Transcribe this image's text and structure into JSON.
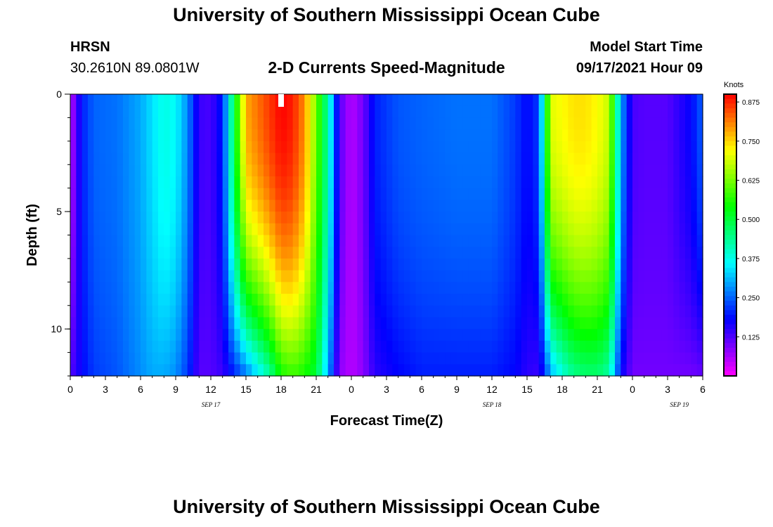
{
  "header": {
    "title": "University of Southern Mississippi Ocean Cube",
    "station": "HRSN",
    "coordinates": "30.2610N  89.0801W",
    "plot_title": "2-D Currents Speed-Magnitude",
    "model_start_label": "Model Start Time",
    "model_start_value": "09/17/2021 Hour 09"
  },
  "footer": {
    "title": "University of Southern Mississippi Ocean Cube"
  },
  "colors": {
    "background": "#ffffff",
    "text": "#000000",
    "marker": "#ffffff"
  },
  "chart_data": {
    "type": "heatmap",
    "title": "2-D Currents Speed-Magnitude",
    "xlabel": "Forecast Time(Z)",
    "ylabel": "Depth (ft)",
    "units": "Knots",
    "x_hours_from_start": [
      0,
      54
    ],
    "x_tick_labels": [
      "0",
      "3",
      "6",
      "9",
      "12",
      "15",
      "18",
      "21",
      "0",
      "3",
      "6",
      "9",
      "12",
      "15",
      "18",
      "21",
      "0",
      "3",
      "6"
    ],
    "date_labels": [
      {
        "text": "SEP 17",
        "hour": 12
      },
      {
        "text": "SEP 18",
        "hour": 36
      },
      {
        "text": "SEP 19",
        "hour": 52
      }
    ],
    "ylim": [
      0,
      12
    ],
    "y_major_ticks": [
      0,
      5,
      10
    ],
    "y_minor_step": 1,
    "colorbar_range": [
      0.0,
      0.9
    ],
    "colorbar_ticks": [
      "0.875",
      "0.750",
      "0.625",
      "0.500",
      "0.375",
      "0.250",
      "0.125"
    ],
    "colorbar_tick_values": [
      0.875,
      0.75,
      0.625,
      0.5,
      0.375,
      0.25,
      0.125
    ],
    "current_time_marker_hour": 18,
    "time_steps": 108,
    "depth_levels": 24,
    "speed_profile_keyframes": {
      "hours": [
        0,
        0.5,
        1,
        2,
        4,
        6,
        7,
        8,
        9,
        10,
        11,
        12,
        13,
        14,
        15,
        16,
        17,
        18,
        19,
        20,
        21,
        22,
        23,
        24,
        25,
        26,
        28,
        30,
        33,
        36,
        38,
        39,
        40,
        40.5,
        41,
        42,
        43,
        44,
        45,
        46,
        46.5,
        47,
        48,
        49,
        50,
        51,
        52,
        53,
        54
      ],
      "surface": [
        0.04,
        0.12,
        0.2,
        0.25,
        0.26,
        0.3,
        0.34,
        0.38,
        0.36,
        0.28,
        0.14,
        0.13,
        0.2,
        0.5,
        0.78,
        0.82,
        0.86,
        0.9,
        0.88,
        0.8,
        0.62,
        0.42,
        0.12,
        0.05,
        0.1,
        0.2,
        0.24,
        0.25,
        0.26,
        0.26,
        0.22,
        0.18,
        0.22,
        0.45,
        0.7,
        0.72,
        0.74,
        0.74,
        0.72,
        0.68,
        0.5,
        0.3,
        0.13,
        0.12,
        0.12,
        0.12,
        0.15,
        0.18,
        0.25
      ],
      "bottom": [
        0.12,
        0.15,
        0.18,
        0.22,
        0.24,
        0.28,
        0.3,
        0.3,
        0.28,
        0.22,
        0.12,
        0.12,
        0.14,
        0.2,
        0.26,
        0.34,
        0.42,
        0.55,
        0.58,
        0.55,
        0.5,
        0.3,
        0.08,
        0.05,
        0.08,
        0.15,
        0.18,
        0.2,
        0.2,
        0.2,
        0.18,
        0.15,
        0.14,
        0.2,
        0.3,
        0.38,
        0.44,
        0.46,
        0.46,
        0.42,
        0.3,
        0.18,
        0.1,
        0.1,
        0.1,
        0.1,
        0.1,
        0.1,
        0.11
      ]
    }
  }
}
